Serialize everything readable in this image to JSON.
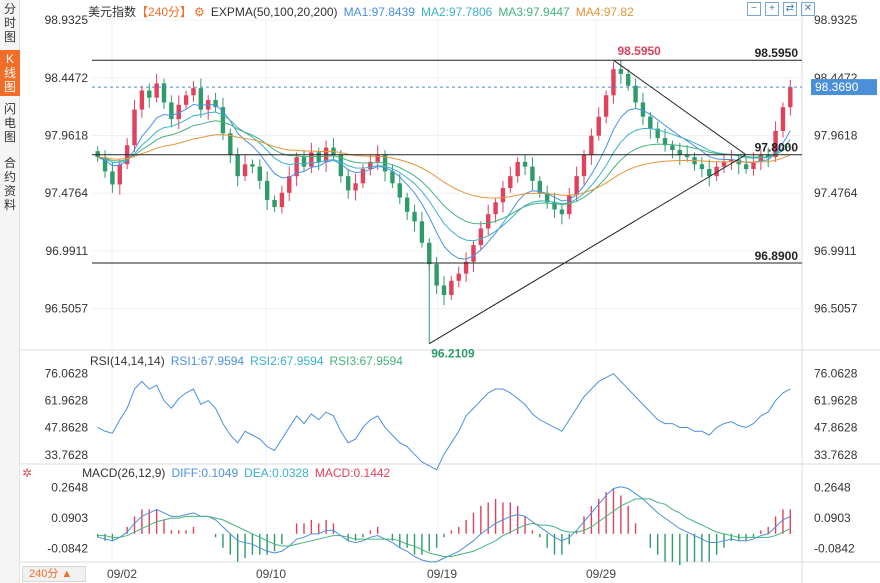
{
  "sidebar": {
    "tabs": [
      {
        "label": "分\n时\n图",
        "active": false
      },
      {
        "label": "K\n线\n图",
        "active": true
      },
      {
        "label": "闪\n电\n图",
        "active": false
      },
      {
        "label": "合\n约\n资\n料",
        "active": false
      }
    ]
  },
  "main_header": {
    "instrument": "美元指数",
    "period": "【240分】",
    "indicator": "EXPMA(50,100,20,200)",
    "ma1": "MA1:97.8439",
    "ma2": "MA2:97.7806",
    "ma3": "MA3:97.9447",
    "ma4": "MA4:97.82"
  },
  "rsi_header": {
    "name": "RSI(14,14,14)",
    "rsi1": "RSI1:67.9594",
    "rsi2": "RSI2:67.9594",
    "rsi3": "RSI3:67.9594"
  },
  "macd_header": {
    "name": "MACD(26,12,9)",
    "diff": "DIFF:0.1049",
    "dea": "DEA:0.0328",
    "macd": "MACD:0.1442"
  },
  "price_axis": [
    "98.9325",
    "98.4472",
    "97.9618",
    "97.4764",
    "96.9911",
    "96.5057"
  ],
  "rsi_axis": [
    "76.0628",
    "61.9628",
    "47.8628",
    "33.7628"
  ],
  "macd_axis": [
    "0.2648",
    "0.0903",
    "-0.0842"
  ],
  "current_price": "98.3690",
  "levels": {
    "resistance": "98.5950",
    "pivot": "97.8000",
    "support": "96.8900"
  },
  "annotations": {
    "high": "98.5950",
    "low": "96.2109"
  },
  "period_button": "240分 ▲",
  "x_labels": [
    "09/02",
    "09/10",
    "09/19",
    "09/29"
  ],
  "controls": [
    "−",
    "+",
    "⇄",
    "✕"
  ],
  "colors": {
    "up": "#e0415c",
    "down": "#2e9b6b",
    "accent": "#f26d26",
    "ma1": "#4a90e2",
    "ma2": "#3bb1c9",
    "ma3": "#43b37d",
    "ma4": "#e6953a",
    "current_label_bg": "#4a8fd8"
  },
  "chart_data": {
    "type": "candlestick",
    "price_range": [
      96.2,
      98.95
    ],
    "rsi_range": [
      30,
      80
    ],
    "macd_range": [
      -0.15,
      0.32
    ],
    "closes": [
      97.78,
      97.66,
      97.55,
      97.72,
      97.88,
      98.18,
      98.34,
      98.28,
      98.4,
      98.24,
      98.1,
      98.22,
      98.3,
      98.36,
      98.18,
      98.26,
      98.2,
      97.98,
      97.8,
      97.62,
      97.72,
      97.7,
      97.58,
      97.42,
      97.36,
      97.48,
      97.62,
      97.78,
      97.7,
      97.82,
      97.74,
      97.86,
      97.8,
      97.62,
      97.5,
      97.56,
      97.68,
      97.74,
      97.8,
      97.66,
      97.56,
      97.44,
      97.32,
      97.24,
      97.06,
      96.88,
      96.7,
      96.62,
      96.74,
      96.8,
      96.9,
      97.04,
      97.18,
      97.3,
      97.4,
      97.52,
      97.62,
      97.74,
      97.7,
      97.58,
      97.48,
      97.4,
      97.34,
      97.3,
      97.46,
      97.62,
      97.8,
      97.96,
      98.12,
      98.3,
      98.52,
      98.48,
      98.38,
      98.24,
      98.12,
      98.02,
      97.94,
      97.88,
      97.84,
      97.8,
      97.78,
      97.72,
      97.68,
      97.62,
      97.7,
      97.74,
      97.76,
      97.72,
      97.68,
      97.74,
      97.8,
      97.78,
      98.0,
      98.2,
      98.37
    ],
    "rsi": [
      48,
      46,
      45,
      52,
      58,
      68,
      72,
      68,
      70,
      62,
      58,
      63,
      66,
      68,
      60,
      62,
      58,
      50,
      44,
      40,
      46,
      44,
      42,
      38,
      36,
      42,
      48,
      54,
      50,
      55,
      52,
      56,
      54,
      46,
      40,
      42,
      48,
      52,
      54,
      48,
      44,
      40,
      38,
      34,
      30,
      28,
      26,
      34,
      40,
      46,
      54,
      58,
      62,
      66,
      68,
      68,
      66,
      63,
      60,
      55,
      52,
      50,
      48,
      46,
      52,
      58,
      64,
      68,
      72,
      74,
      76,
      72,
      68,
      64,
      60,
      56,
      52,
      50,
      50,
      48,
      48,
      46,
      46,
      44,
      48,
      50,
      51,
      49,
      48,
      50,
      54,
      56,
      62,
      66,
      68
    ],
    "macd_diff": [
      -0.02,
      -0.03,
      -0.04,
      -0.02,
      0.01,
      0.06,
      0.1,
      0.12,
      0.14,
      0.12,
      0.1,
      0.1,
      0.11,
      0.12,
      0.1,
      0.1,
      0.08,
      0.04,
      0.0,
      -0.04,
      -0.05,
      -0.06,
      -0.08,
      -0.1,
      -0.11,
      -0.1,
      -0.07,
      -0.03,
      -0.02,
      0.0,
      0.0,
      0.02,
      0.02,
      -0.01,
      -0.04,
      -0.05,
      -0.04,
      -0.02,
      -0.01,
      -0.03,
      -0.05,
      -0.08,
      -0.1,
      -0.13,
      -0.15,
      -0.16,
      -0.16,
      -0.14,
      -0.12,
      -0.1,
      -0.07,
      -0.04,
      0.0,
      0.03,
      0.06,
      0.08,
      0.1,
      0.11,
      0.1,
      0.07,
      0.04,
      0.01,
      -0.02,
      -0.04,
      -0.02,
      0.02,
      0.07,
      0.12,
      0.17,
      0.22,
      0.26,
      0.27,
      0.26,
      0.23,
      0.2,
      0.16,
      0.12,
      0.09,
      0.06,
      0.03,
      0.01,
      -0.01,
      -0.03,
      -0.05,
      -0.05,
      -0.04,
      -0.03,
      -0.04,
      -0.04,
      -0.03,
      -0.01,
      0.0,
      0.04,
      0.08,
      0.1
    ],
    "macd_dea": [
      -0.01,
      -0.01,
      -0.02,
      -0.02,
      -0.01,
      0.01,
      0.03,
      0.05,
      0.07,
      0.08,
      0.09,
      0.09,
      0.1,
      0.1,
      0.1,
      0.1,
      0.09,
      0.08,
      0.06,
      0.04,
      0.02,
      0.0,
      -0.02,
      -0.04,
      -0.06,
      -0.07,
      -0.07,
      -0.06,
      -0.05,
      -0.04,
      -0.03,
      -0.02,
      -0.01,
      -0.01,
      -0.02,
      -0.03,
      -0.03,
      -0.03,
      -0.03,
      -0.03,
      -0.03,
      -0.04,
      -0.06,
      -0.07,
      -0.09,
      -0.11,
      -0.12,
      -0.13,
      -0.13,
      -0.12,
      -0.11,
      -0.1,
      -0.08,
      -0.06,
      -0.04,
      -0.01,
      0.01,
      0.03,
      0.05,
      0.06,
      0.05,
      0.05,
      0.04,
      0.02,
      0.01,
      0.01,
      0.02,
      0.04,
      0.07,
      0.1,
      0.13,
      0.16,
      0.18,
      0.2,
      0.2,
      0.2,
      0.18,
      0.17,
      0.14,
      0.12,
      0.09,
      0.07,
      0.05,
      0.03,
      0.01,
      0.0,
      -0.01,
      -0.02,
      -0.02,
      -0.02,
      -0.02,
      -0.02,
      -0.01,
      0.01,
      0.03
    ]
  }
}
